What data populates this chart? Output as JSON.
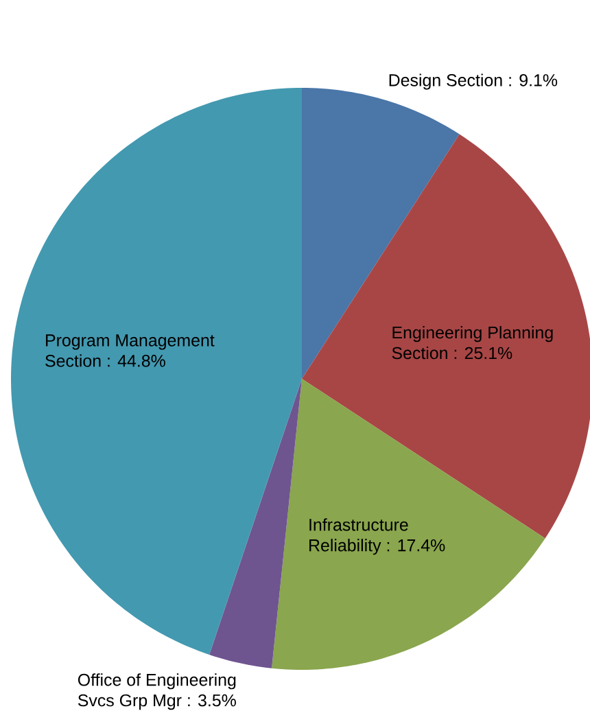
{
  "chart_data": {
    "type": "pie",
    "categories": [
      "Design Section",
      "Engineering Planning Section",
      "Infrastructure Reliability",
      "Office of Engineering Svcs Grp Mgr",
      "Program Management Section"
    ],
    "values": [
      9.1,
      25.1,
      17.4,
      3.5,
      44.8
    ],
    "value_labels": [
      ":  9.1%",
      ":  25.1%",
      ":  17.4%",
      ":  3.5%",
      ":  44.8%"
    ],
    "colors": [
      "#4a76a8",
      "#a84646",
      "#8aa64e",
      "#6e5590",
      "#4399b0"
    ]
  }
}
